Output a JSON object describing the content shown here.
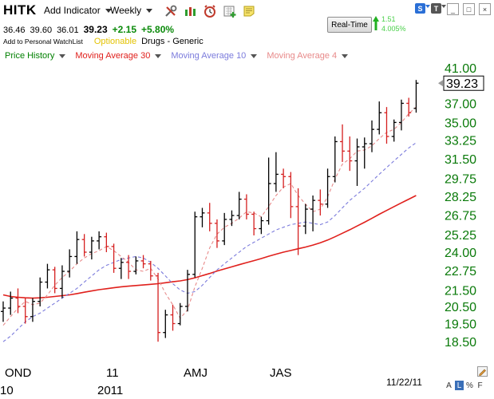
{
  "header": {
    "symbol": "HITK",
    "add_indicator": "Add Indicator",
    "timeframe": "Weekly",
    "quote": {
      "open": "36.46",
      "high": "39.60",
      "low": "36.01",
      "last": "39.23",
      "change": "+2.15",
      "change_pct": "+5.80%"
    },
    "watchlist_link": "Add to Personal WatchList",
    "optionable": "Optionable",
    "industry": "Drugs - Generic",
    "realtime_button": "Real-Time",
    "realtime_change": "1.51",
    "realtime_change_pct": "4.005%",
    "tool_icons": [
      "wrench-screwdriver-icon",
      "candlestick-icon",
      "alarm-clock-icon",
      "add-chart-icon",
      "sticky-note-icon"
    ],
    "window_buttons": [
      "S",
      "T",
      "_",
      "□",
      "×"
    ]
  },
  "legend": [
    {
      "label": "Price History",
      "color": "#008000"
    },
    {
      "label": "Moving Average 30",
      "color": "#e0201c"
    },
    {
      "label": "Moving Average 10",
      "color": "#7b7bdc"
    },
    {
      "label": "Moving Average 4",
      "color": "#e88a8a"
    }
  ],
  "footer": {
    "date": "11/22/11",
    "toggles": [
      "A",
      "L",
      "%",
      "F"
    ]
  },
  "chart_data": {
    "type": "ohlc",
    "title": "",
    "y_axis": {
      "side": "right",
      "ylim": [
        18.0,
        41.5
      ],
      "ticks": [
        18.5,
        19.5,
        20.5,
        21.5,
        22.75,
        24.0,
        25.25,
        26.75,
        28.25,
        29.75,
        31.5,
        33.25,
        35.0,
        37.0,
        39.23,
        41.0
      ],
      "tick_labels": [
        "18.50",
        "19.50",
        "20.50",
        "21.50",
        "22.75",
        "24.00",
        "25.25",
        "26.75",
        "28.25",
        "29.75",
        "31.50",
        "33.25",
        "35.00",
        "37.00",
        "39.23",
        "41.00"
      ],
      "highlighted_label": "39.23",
      "scale": "log"
    },
    "x_axis": {
      "labels_top": [
        "OND",
        "11",
        "AMJ",
        "JAS"
      ],
      "labels_bottom": [
        "10",
        "2011"
      ]
    },
    "bars": [
      {
        "o": 20.2,
        "h": 20.8,
        "l": 19.6,
        "c": 20.4
      },
      {
        "o": 20.4,
        "h": 21.4,
        "l": 20.0,
        "c": 21.0
      },
      {
        "o": 21.0,
        "h": 21.6,
        "l": 20.1,
        "c": 20.5
      },
      {
        "o": 20.5,
        "h": 21.0,
        "l": 19.5,
        "c": 19.9
      },
      {
        "o": 19.9,
        "h": 21.0,
        "l": 19.6,
        "c": 20.8
      },
      {
        "o": 20.8,
        "h": 22.3,
        "l": 20.5,
        "c": 22.0
      },
      {
        "o": 22.0,
        "h": 23.2,
        "l": 21.6,
        "c": 22.8
      },
      {
        "o": 22.8,
        "h": 23.0,
        "l": 21.3,
        "c": 21.6
      },
      {
        "o": 21.6,
        "h": 23.1,
        "l": 21.0,
        "c": 22.7
      },
      {
        "o": 22.7,
        "h": 24.2,
        "l": 22.3,
        "c": 23.7
      },
      {
        "o": 23.7,
        "h": 25.5,
        "l": 23.2,
        "c": 24.9
      },
      {
        "o": 24.9,
        "h": 25.3,
        "l": 23.7,
        "c": 24.0
      },
      {
        "o": 24.0,
        "h": 25.1,
        "l": 23.5,
        "c": 24.8
      },
      {
        "o": 24.8,
        "h": 25.5,
        "l": 24.2,
        "c": 25.1
      },
      {
        "o": 25.1,
        "h": 25.4,
        "l": 24.0,
        "c": 24.4
      },
      {
        "o": 24.4,
        "h": 24.6,
        "l": 22.6,
        "c": 22.9
      },
      {
        "o": 22.9,
        "h": 23.6,
        "l": 22.2,
        "c": 23.3
      },
      {
        "o": 23.3,
        "h": 23.8,
        "l": 22.2,
        "c": 22.7
      },
      {
        "o": 22.7,
        "h": 23.7,
        "l": 22.5,
        "c": 23.4
      },
      {
        "o": 23.4,
        "h": 23.8,
        "l": 22.9,
        "c": 23.2
      },
      {
        "o": 23.2,
        "h": 23.4,
        "l": 22.1,
        "c": 22.4
      },
      {
        "o": 22.4,
        "h": 22.6,
        "l": 18.5,
        "c": 19.0
      },
      {
        "o": 19.0,
        "h": 20.3,
        "l": 18.7,
        "c": 20.0
      },
      {
        "o": 20.0,
        "h": 20.6,
        "l": 19.1,
        "c": 19.5
      },
      {
        "o": 19.5,
        "h": 20.7,
        "l": 19.4,
        "c": 20.5
      },
      {
        "o": 20.5,
        "h": 22.8,
        "l": 20.2,
        "c": 22.5
      },
      {
        "o": 22.5,
        "h": 27.0,
        "l": 22.3,
        "c": 26.6
      },
      {
        "o": 26.6,
        "h": 27.3,
        "l": 25.8,
        "c": 26.9
      },
      {
        "o": 26.9,
        "h": 27.7,
        "l": 25.5,
        "c": 26.1
      },
      {
        "o": 26.1,
        "h": 26.4,
        "l": 24.3,
        "c": 24.8
      },
      {
        "o": 24.8,
        "h": 26.9,
        "l": 24.5,
        "c": 26.4
      },
      {
        "o": 26.4,
        "h": 27.1,
        "l": 25.9,
        "c": 26.7
      },
      {
        "o": 26.7,
        "h": 28.6,
        "l": 26.4,
        "c": 28.0
      },
      {
        "o": 28.0,
        "h": 28.4,
        "l": 26.4,
        "c": 26.8
      },
      {
        "o": 26.8,
        "h": 27.0,
        "l": 25.2,
        "c": 25.7
      },
      {
        "o": 25.7,
        "h": 26.6,
        "l": 25.3,
        "c": 26.3
      },
      {
        "o": 26.3,
        "h": 31.6,
        "l": 26.0,
        "c": 29.3
      },
      {
        "o": 29.3,
        "h": 32.1,
        "l": 28.6,
        "c": 30.1
      },
      {
        "o": 30.1,
        "h": 30.6,
        "l": 28.9,
        "c": 29.9
      },
      {
        "o": 29.9,
        "h": 30.3,
        "l": 26.5,
        "c": 27.4
      },
      {
        "o": 27.4,
        "h": 28.9,
        "l": 23.8,
        "c": 25.9
      },
      {
        "o": 25.9,
        "h": 27.6,
        "l": 25.3,
        "c": 27.2
      },
      {
        "o": 27.2,
        "h": 28.3,
        "l": 25.5,
        "c": 27.9
      },
      {
        "o": 27.9,
        "h": 28.8,
        "l": 26.7,
        "c": 27.6
      },
      {
        "o": 27.6,
        "h": 30.6,
        "l": 27.3,
        "c": 29.9
      },
      {
        "o": 29.9,
        "h": 33.6,
        "l": 29.4,
        "c": 33.1
      },
      {
        "o": 33.1,
        "h": 34.8,
        "l": 31.2,
        "c": 32.2
      },
      {
        "o": 32.2,
        "h": 33.6,
        "l": 30.4,
        "c": 31.3
      },
      {
        "o": 31.3,
        "h": 33.4,
        "l": 29.1,
        "c": 32.6
      },
      {
        "o": 32.6,
        "h": 33.5,
        "l": 30.6,
        "c": 32.9
      },
      {
        "o": 32.9,
        "h": 35.2,
        "l": 32.1,
        "c": 34.3
      },
      {
        "o": 34.3,
        "h": 37.2,
        "l": 33.8,
        "c": 36.0
      },
      {
        "o": 36.0,
        "h": 36.6,
        "l": 32.9,
        "c": 33.6
      },
      {
        "o": 33.6,
        "h": 35.3,
        "l": 33.1,
        "c": 35.0
      },
      {
        "o": 35.0,
        "h": 37.4,
        "l": 34.2,
        "c": 37.0
      },
      {
        "o": 37.0,
        "h": 37.6,
        "l": 35.6,
        "c": 36.0
      },
      {
        "o": 36.46,
        "h": 39.6,
        "l": 36.01,
        "c": 39.23
      }
    ],
    "series": [
      {
        "name": "Moving Average 30",
        "color": "#e0201c",
        "values": [
          21.2,
          21.1,
          21.05,
          21.02,
          21.0,
          21.02,
          21.05,
          21.1,
          21.15,
          21.2,
          21.28,
          21.36,
          21.44,
          21.52,
          21.58,
          21.64,
          21.7,
          21.74,
          21.78,
          21.82,
          21.86,
          21.9,
          21.96,
          22.02,
          22.08,
          22.16,
          22.28,
          22.42,
          22.56,
          22.72,
          22.86,
          23.0,
          23.14,
          23.28,
          23.42,
          23.56,
          23.72,
          23.86,
          24.0,
          24.12,
          24.24,
          24.36,
          24.5,
          24.66,
          24.86,
          25.1,
          25.36,
          25.62,
          25.9,
          26.18,
          26.48,
          26.8,
          27.1,
          27.4,
          27.7,
          28.0,
          28.3
        ]
      },
      {
        "name": "Moving Average 10",
        "color": "#7b7bdc",
        "values": [
          18.5,
          18.8,
          19.2,
          19.6,
          19.9,
          20.1,
          20.4,
          20.7,
          21.0,
          21.3,
          21.6,
          22.0,
          22.4,
          22.8,
          23.1,
          23.3,
          23.5,
          23.6,
          23.7,
          23.6,
          23.3,
          22.9,
          22.4,
          21.9,
          21.5,
          21.3,
          21.4,
          21.8,
          22.3,
          22.8,
          23.2,
          23.6,
          24.0,
          24.4,
          24.7,
          25.0,
          25.3,
          25.6,
          25.8,
          26.0,
          26.1,
          26.2,
          26.1,
          26.0,
          26.2,
          26.7,
          27.3,
          27.9,
          28.4,
          28.9,
          29.5,
          30.1,
          30.7,
          31.3,
          31.9,
          32.5,
          33.0
        ]
      },
      {
        "name": "Moving Average 4",
        "color": "#e88a8a",
        "values": [
          19.4,
          19.9,
          20.4,
          20.8,
          20.6,
          20.7,
          21.2,
          21.8,
          22.3,
          22.7,
          23.2,
          23.6,
          23.9,
          24.1,
          24.4,
          24.1,
          23.7,
          23.3,
          22.8,
          22.7,
          22.9,
          22.2,
          21.3,
          20.6,
          19.8,
          20.3,
          21.7,
          22.9,
          24.3,
          25.3,
          25.8,
          26.1,
          26.5,
          27.0,
          26.9,
          26.6,
          27.4,
          28.3,
          29.0,
          29.3,
          28.3,
          27.6,
          27.0,
          27.2,
          28.2,
          29.7,
          31.0,
          31.5,
          32.2,
          32.3,
          32.7,
          33.4,
          34.0,
          34.3,
          35.0,
          35.9,
          36.6
        ]
      }
    ]
  }
}
